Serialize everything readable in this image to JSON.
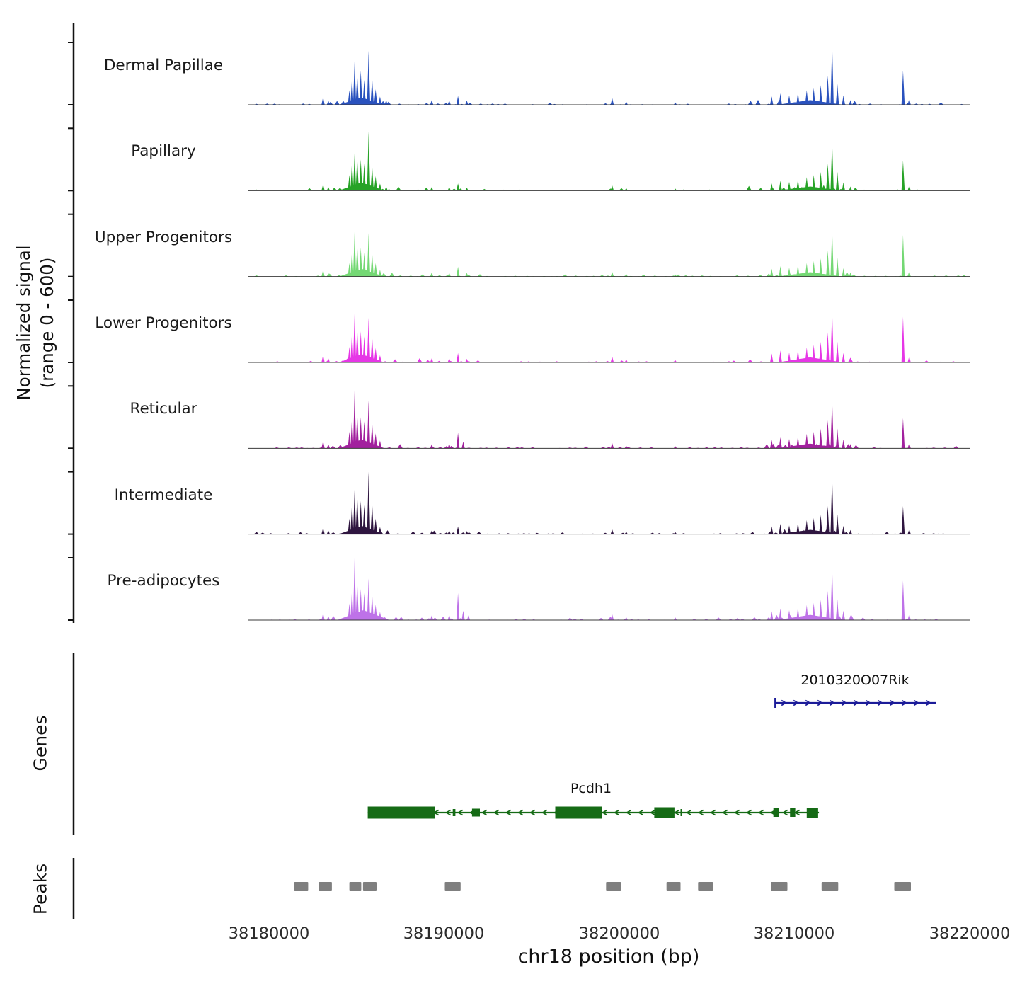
{
  "labels": {
    "ylabel": "Normalized signal\n(range 0 - 600)",
    "xlabel": "chr18 position (bp)",
    "genes_section": "Genes",
    "peaks_section": "Peaks",
    "x_tick_labels": [
      "38180000",
      "38190000",
      "38200000",
      "38210000",
      "38220000"
    ]
  },
  "chart_data": {
    "type": "area",
    "subtype": "genome-signal-tracks",
    "title": "",
    "xlabel": "chr18 position (bp)",
    "ylabel": "Normalized signal (range 0 - 600)",
    "ylim": [
      0,
      600
    ],
    "region": {
      "chrom": "chr18",
      "start": 38178800,
      "end": 38220000
    },
    "x_ticks": [
      38180000,
      38190000,
      38200000,
      38210000,
      38220000
    ],
    "x_tick_labels": [
      "38180000",
      "38190000",
      "38200000",
      "38210000",
      "38220000"
    ],
    "tracks": [
      {
        "label": "Dermal Papillae",
        "color": "#2a52be",
        "spikes": [
          [
            38183100,
            75
          ],
          [
            38183400,
            40
          ],
          [
            38185300,
            70,
            2600
          ],
          [
            38184600,
            140
          ],
          [
            38184750,
            260
          ],
          [
            38184900,
            420
          ],
          [
            38185050,
            300
          ],
          [
            38185250,
            330
          ],
          [
            38185450,
            240
          ],
          [
            38185700,
            520
          ],
          [
            38185900,
            260
          ],
          [
            38186100,
            150
          ],
          [
            38186350,
            80
          ],
          [
            38186700,
            45
          ],
          [
            38189300,
            45
          ],
          [
            38190300,
            40
          ],
          [
            38190800,
            85
          ],
          [
            38191300,
            40
          ],
          [
            38199600,
            65
          ],
          [
            38200400,
            30
          ],
          [
            38203200,
            22
          ],
          [
            38210900,
            45,
            3800
          ],
          [
            38208700,
            80
          ],
          [
            38209200,
            110
          ],
          [
            38209700,
            90
          ],
          [
            38210200,
            120
          ],
          [
            38210700,
            140
          ],
          [
            38211100,
            160
          ],
          [
            38211500,
            190
          ],
          [
            38211900,
            280
          ],
          [
            38212150,
            590
          ],
          [
            38212450,
            200
          ],
          [
            38212800,
            90
          ],
          [
            38213200,
            45
          ],
          [
            38216200,
            330
          ],
          [
            38216550,
            60
          ]
        ]
      },
      {
        "label": "Papillary",
        "color": "#27a327",
        "spikes": [
          [
            38183100,
            60
          ],
          [
            38183400,
            35
          ],
          [
            38185300,
            80,
            2600
          ],
          [
            38184600,
            150
          ],
          [
            38184750,
            280
          ],
          [
            38184900,
            360
          ],
          [
            38185050,
            320
          ],
          [
            38185250,
            300
          ],
          [
            38185450,
            260
          ],
          [
            38185700,
            570
          ],
          [
            38185900,
            240
          ],
          [
            38186100,
            140
          ],
          [
            38186350,
            70
          ],
          [
            38186700,
            40
          ],
          [
            38189300,
            35
          ],
          [
            38190300,
            35
          ],
          [
            38190800,
            70
          ],
          [
            38191300,
            30
          ],
          [
            38199600,
            50
          ],
          [
            38200400,
            25
          ],
          [
            38203200,
            20
          ],
          [
            38210900,
            40,
            3800
          ],
          [
            38208700,
            70
          ],
          [
            38209200,
            95
          ],
          [
            38209700,
            85
          ],
          [
            38210200,
            110
          ],
          [
            38210700,
            130
          ],
          [
            38211100,
            150
          ],
          [
            38211500,
            180
          ],
          [
            38211900,
            260
          ],
          [
            38212150,
            470
          ],
          [
            38212450,
            180
          ],
          [
            38212800,
            80
          ],
          [
            38213200,
            40
          ],
          [
            38216200,
            290
          ],
          [
            38216550,
            50
          ]
        ]
      },
      {
        "label": "Upper Progenitors",
        "color": "#74d874",
        "spikes": [
          [
            38183100,
            65
          ],
          [
            38183400,
            35
          ],
          [
            38185300,
            75,
            2600
          ],
          [
            38184600,
            130
          ],
          [
            38184750,
            250
          ],
          [
            38184900,
            430
          ],
          [
            38185050,
            310
          ],
          [
            38185250,
            280
          ],
          [
            38185450,
            230
          ],
          [
            38185700,
            420
          ],
          [
            38185900,
            230
          ],
          [
            38186100,
            130
          ],
          [
            38186350,
            65
          ],
          [
            38189300,
            40
          ],
          [
            38190300,
            35
          ],
          [
            38190800,
            95
          ],
          [
            38191300,
            35
          ],
          [
            38199600,
            45
          ],
          [
            38200400,
            25
          ],
          [
            38203200,
            20
          ],
          [
            38210900,
            42,
            3800
          ],
          [
            38208700,
            75
          ],
          [
            38209200,
            100
          ],
          [
            38209700,
            85
          ],
          [
            38210200,
            115
          ],
          [
            38210700,
            130
          ],
          [
            38211100,
            150
          ],
          [
            38211500,
            175
          ],
          [
            38211900,
            250
          ],
          [
            38212150,
            450
          ],
          [
            38212450,
            180
          ],
          [
            38212800,
            80
          ],
          [
            38213200,
            40
          ],
          [
            38216200,
            400
          ],
          [
            38216550,
            55
          ]
        ]
      },
      {
        "label": "Lower Progenitors",
        "color": "#e636e6",
        "spikes": [
          [
            38183100,
            70
          ],
          [
            38183400,
            40
          ],
          [
            38185300,
            80,
            2600
          ],
          [
            38184600,
            150
          ],
          [
            38184750,
            290
          ],
          [
            38184900,
            470
          ],
          [
            38185050,
            330
          ],
          [
            38185250,
            300
          ],
          [
            38185450,
            250
          ],
          [
            38185700,
            430
          ],
          [
            38185900,
            250
          ],
          [
            38186100,
            140
          ],
          [
            38186350,
            70
          ],
          [
            38189300,
            40
          ],
          [
            38190300,
            40
          ],
          [
            38190800,
            90
          ],
          [
            38191300,
            35
          ],
          [
            38199600,
            55
          ],
          [
            38200400,
            28
          ],
          [
            38203200,
            22
          ],
          [
            38210900,
            48,
            3800
          ],
          [
            38208700,
            85
          ],
          [
            38209200,
            115
          ],
          [
            38209700,
            95
          ],
          [
            38210200,
            125
          ],
          [
            38210700,
            145
          ],
          [
            38211100,
            170
          ],
          [
            38211500,
            200
          ],
          [
            38211900,
            290
          ],
          [
            38212150,
            500
          ],
          [
            38212450,
            200
          ],
          [
            38212800,
            90
          ],
          [
            38213200,
            45
          ],
          [
            38216200,
            440
          ],
          [
            38216550,
            60
          ]
        ]
      },
      {
        "label": "Reticular",
        "color": "#a2219e",
        "spikes": [
          [
            38183100,
            70
          ],
          [
            38183400,
            40
          ],
          [
            38185300,
            85,
            2600
          ],
          [
            38184600,
            160
          ],
          [
            38184750,
            300
          ],
          [
            38184900,
            560
          ],
          [
            38185050,
            340
          ],
          [
            38185250,
            300
          ],
          [
            38185450,
            260
          ],
          [
            38185700,
            460
          ],
          [
            38185900,
            250
          ],
          [
            38186100,
            145
          ],
          [
            38186350,
            75
          ],
          [
            38189300,
            40
          ],
          [
            38190300,
            45
          ],
          [
            38190800,
            150
          ],
          [
            38191100,
            65
          ],
          [
            38199600,
            50
          ],
          [
            38200400,
            25
          ],
          [
            38203200,
            20
          ],
          [
            38210900,
            45,
            3800
          ],
          [
            38208700,
            80
          ],
          [
            38209200,
            105
          ],
          [
            38209700,
            90
          ],
          [
            38210200,
            120
          ],
          [
            38210700,
            140
          ],
          [
            38211100,
            160
          ],
          [
            38211500,
            190
          ],
          [
            38211900,
            270
          ],
          [
            38212150,
            470
          ],
          [
            38212450,
            190
          ],
          [
            38212800,
            85
          ],
          [
            38213200,
            42
          ],
          [
            38216200,
            290
          ],
          [
            38216550,
            50
          ]
        ]
      },
      {
        "label": "Intermediate",
        "color": "#2f1640",
        "spikes": [
          [
            38183100,
            60
          ],
          [
            38183400,
            35
          ],
          [
            38185300,
            80,
            2600
          ],
          [
            38184600,
            150
          ],
          [
            38184750,
            300
          ],
          [
            38184900,
            430
          ],
          [
            38185050,
            380
          ],
          [
            38185250,
            320
          ],
          [
            38185450,
            280
          ],
          [
            38185700,
            600
          ],
          [
            38185900,
            300
          ],
          [
            38186100,
            150
          ],
          [
            38186350,
            70
          ],
          [
            38189300,
            35
          ],
          [
            38190300,
            35
          ],
          [
            38190800,
            75
          ],
          [
            38191300,
            30
          ],
          [
            38199600,
            45
          ],
          [
            38200400,
            22
          ],
          [
            38203200,
            20
          ],
          [
            38210900,
            42,
            3800
          ],
          [
            38208700,
            75
          ],
          [
            38209200,
            100
          ],
          [
            38209700,
            85
          ],
          [
            38210200,
            115
          ],
          [
            38210700,
            135
          ],
          [
            38211100,
            155
          ],
          [
            38211500,
            185
          ],
          [
            38211900,
            270
          ],
          [
            38212150,
            560
          ],
          [
            38212450,
            190
          ],
          [
            38212800,
            80
          ],
          [
            38213200,
            40
          ],
          [
            38216200,
            270
          ],
          [
            38216550,
            48
          ]
        ]
      },
      {
        "label": "Pre-adipocytes",
        "color": "#be72e8",
        "spikes": [
          [
            38183100,
            65
          ],
          [
            38183400,
            38
          ],
          [
            38185400,
            95,
            3000
          ],
          [
            38184600,
            160
          ],
          [
            38184750,
            300
          ],
          [
            38184900,
            600
          ],
          [
            38185050,
            380
          ],
          [
            38185250,
            300
          ],
          [
            38185450,
            260
          ],
          [
            38185700,
            400
          ],
          [
            38185900,
            250
          ],
          [
            38186100,
            150
          ],
          [
            38186350,
            80
          ],
          [
            38189300,
            45
          ],
          [
            38190300,
            50
          ],
          [
            38190800,
            260
          ],
          [
            38191100,
            90
          ],
          [
            38191400,
            45
          ],
          [
            38199600,
            55
          ],
          [
            38200400,
            28
          ],
          [
            38203200,
            25
          ],
          [
            38210900,
            50,
            3800
          ],
          [
            38208700,
            85
          ],
          [
            38209200,
            110
          ],
          [
            38209700,
            95
          ],
          [
            38210200,
            125
          ],
          [
            38210700,
            145
          ],
          [
            38211100,
            165
          ],
          [
            38211500,
            195
          ],
          [
            38211900,
            280
          ],
          [
            38212150,
            510
          ],
          [
            38212450,
            200
          ],
          [
            38212800,
            90
          ],
          [
            38213200,
            45
          ],
          [
            38216200,
            380
          ],
          [
            38216550,
            60
          ]
        ]
      }
    ],
    "genes": [
      {
        "name": "2010320O07Rik",
        "strand": "+",
        "color": "#1c1c99",
        "start": 38208900,
        "end": 38218100,
        "exons": []
      },
      {
        "name": "Pcdh1",
        "strand": "-",
        "color": "#156b15",
        "start": 38185650,
        "end": 38211400,
        "exons": [
          [
            38185650,
            38189500,
            17
          ],
          [
            38190500,
            38190650,
            10
          ],
          [
            38191600,
            38192050,
            11
          ],
          [
            38196350,
            38199000,
            17
          ],
          [
            38202000,
            38203150,
            15
          ],
          [
            38203500,
            38203600,
            10
          ],
          [
            38208800,
            38209100,
            12
          ],
          [
            38209750,
            38210050,
            12
          ],
          [
            38210700,
            38211350,
            14
          ]
        ]
      }
    ],
    "peaks_color": "#7f7f7f",
    "peak_intervals": [
      [
        38181450,
        38182250
      ],
      [
        38182850,
        38183600
      ],
      [
        38184600,
        38185280
      ],
      [
        38185380,
        38186150
      ],
      [
        38190050,
        38190950
      ],
      [
        38199250,
        38200100
      ],
      [
        38202700,
        38203500
      ],
      [
        38204500,
        38205350
      ],
      [
        38208650,
        38209600
      ],
      [
        38211550,
        38212500
      ],
      [
        38215700,
        38216650
      ]
    ]
  }
}
